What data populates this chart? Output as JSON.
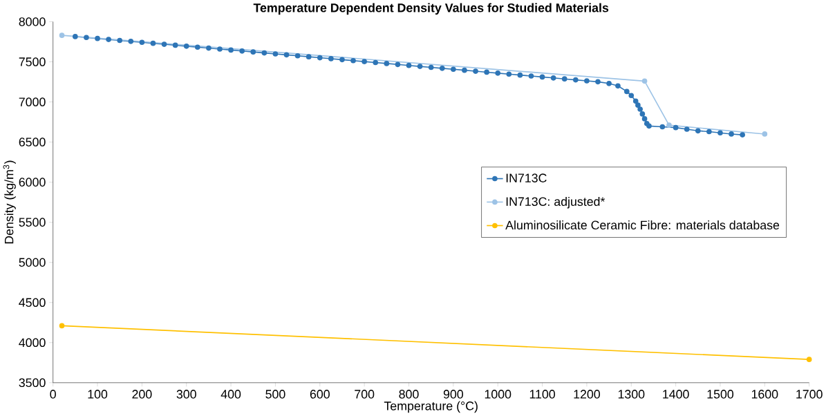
{
  "chart_data": {
    "type": "line",
    "title": "Temperature Dependent Density Values for Studied Materials",
    "xlabel": "Temperature (°C)",
    "ylabel": "Density (kg/m$^{3}$)",
    "xlim": [
      0,
      1700
    ],
    "xticks": [
      0,
      100,
      200,
      300,
      400,
      500,
      600,
      700,
      800,
      900,
      1000,
      1100,
      1200,
      1300,
      1400,
      1500,
      1600,
      1700
    ],
    "ylim": [
      3500,
      8000
    ],
    "yticks": [
      3500,
      4000,
      4500,
      5000,
      5500,
      6000,
      6500,
      7000,
      7500,
      8000
    ],
    "legend": "right",
    "marker": "circle",
    "grid": false,
    "series": [
      {
        "name": "IN713C",
        "color": "#2e75b6",
        "x": [
          50,
          75,
          100,
          125,
          150,
          175,
          200,
          225,
          250,
          275,
          300,
          325,
          350,
          375,
          400,
          425,
          450,
          475,
          500,
          525,
          550,
          575,
          600,
          625,
          650,
          675,
          700,
          725,
          750,
          775,
          800,
          825,
          850,
          875,
          900,
          925,
          950,
          975,
          1000,
          1025,
          1050,
          1075,
          1100,
          1125,
          1150,
          1175,
          1200,
          1225,
          1250,
          1270,
          1290,
          1300,
          1310,
          1315,
          1320,
          1325,
          1330,
          1335,
          1340,
          1370,
          1400,
          1425,
          1450,
          1475,
          1500,
          1525,
          1550
        ],
        "values": [
          7815,
          7803,
          7791,
          7779,
          7767,
          7755,
          7743,
          7731,
          7719,
          7707,
          7695,
          7683,
          7671,
          7659,
          7647,
          7635,
          7623,
          7611,
          7599,
          7587,
          7575,
          7563,
          7551,
          7539,
          7527,
          7515,
          7503,
          7491,
          7479,
          7467,
          7455,
          7443,
          7431,
          7419,
          7407,
          7395,
          7383,
          7371,
          7359,
          7347,
          7335,
          7323,
          7311,
          7299,
          7287,
          7275,
          7263,
          7251,
          7230,
          7200,
          7130,
          7080,
          7010,
          6960,
          6910,
          6850,
          6790,
          6730,
          6700,
          6690,
          6680,
          6660,
          6640,
          6630,
          6615,
          6600,
          6590
        ]
      },
      {
        "name": "IN713C: adjusted*",
        "color": "#9dc3e6",
        "x": [
          20,
          1330,
          1385,
          1600
        ],
        "values": [
          7830,
          7260,
          6710,
          6600
        ]
      },
      {
        "name": "Aluminosilicate Ceramic Fibre: materials database",
        "color": "#ffc000",
        "x": [
          20,
          1700
        ],
        "values": [
          4210,
          3790
        ]
      }
    ]
  }
}
